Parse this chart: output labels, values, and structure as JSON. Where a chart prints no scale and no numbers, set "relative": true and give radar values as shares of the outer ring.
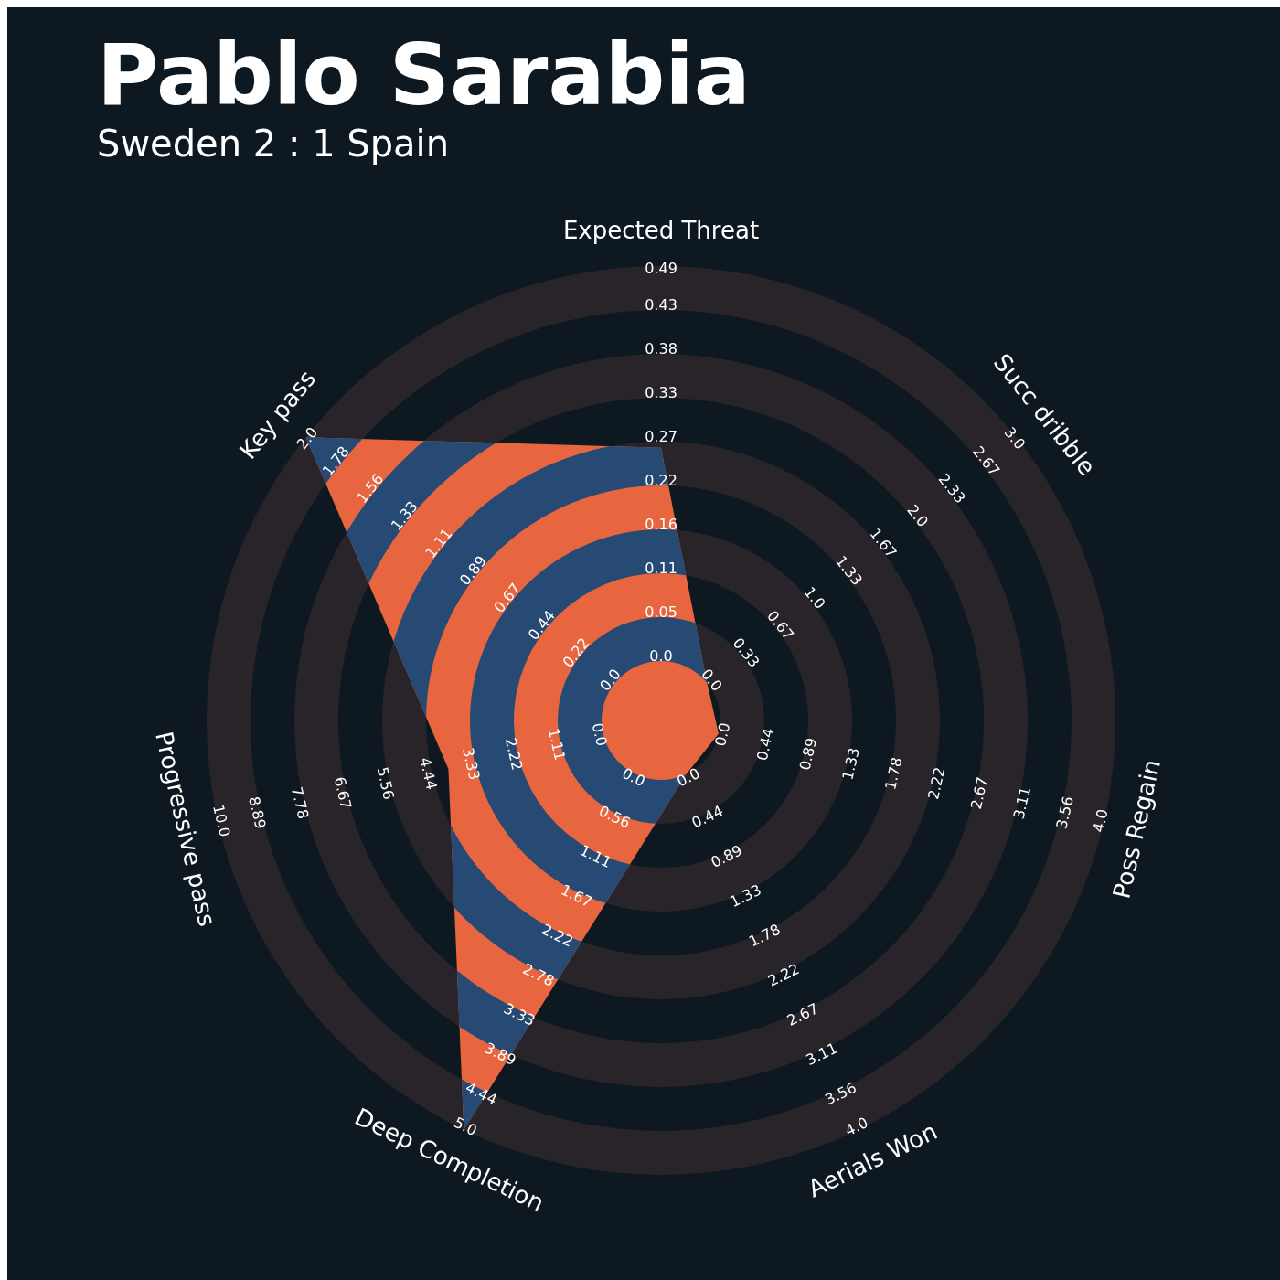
{
  "chart_data": {
    "type": "radar",
    "title": "Pablo Sarabia",
    "subtitle": "Sweden 2 : 1 Spain",
    "relative": true,
    "categories": [
      "Expected Threat",
      "Succ dribble",
      "Poss Regain",
      "Aerials Won",
      "Deep Completion",
      "Progressive pass",
      "Key pass"
    ],
    "series": [
      {
        "color": "#e8663f",
        "values": [
          0.6,
          0.13,
          0.13,
          0.13,
          1,
          0.48,
          1
        ]
      }
    ],
    "annotations": [
      "0.0",
      "0.05",
      "0.11",
      "0.16",
      "0.22",
      "0.27",
      "0.33",
      "0.38",
      "0.43",
      "0.49",
      "0.0",
      "0.33",
      "0.67",
      "1.0",
      "1.33",
      "1.67",
      "2.0",
      "2.33",
      "2.67",
      "3.0",
      "0.0",
      "0.44",
      "0.89",
      "1.33",
      "1.78",
      "2.22",
      "2.67",
      "3.11",
      "3.56",
      "4.0",
      "0.0",
      "0.44",
      "0.89",
      "1.33",
      "1.78",
      "2.22",
      "2.67",
      "3.11",
      "3.56",
      "4.0",
      "0.0",
      "0.56",
      "1.11",
      "1.67",
      "2.22",
      "2.78",
      "3.33",
      "3.89",
      "4.44",
      "5.0",
      "0.0",
      "1.11",
      "2.22",
      "3.33",
      "4.44",
      "5.56",
      "6.67",
      "7.78",
      "8.89",
      "10.0",
      "0.0",
      "0.22",
      "0.44",
      "0.67",
      "0.89",
      "1.11",
      "1.33",
      "1.56",
      "1.78",
      "2.0"
    ]
  }
}
